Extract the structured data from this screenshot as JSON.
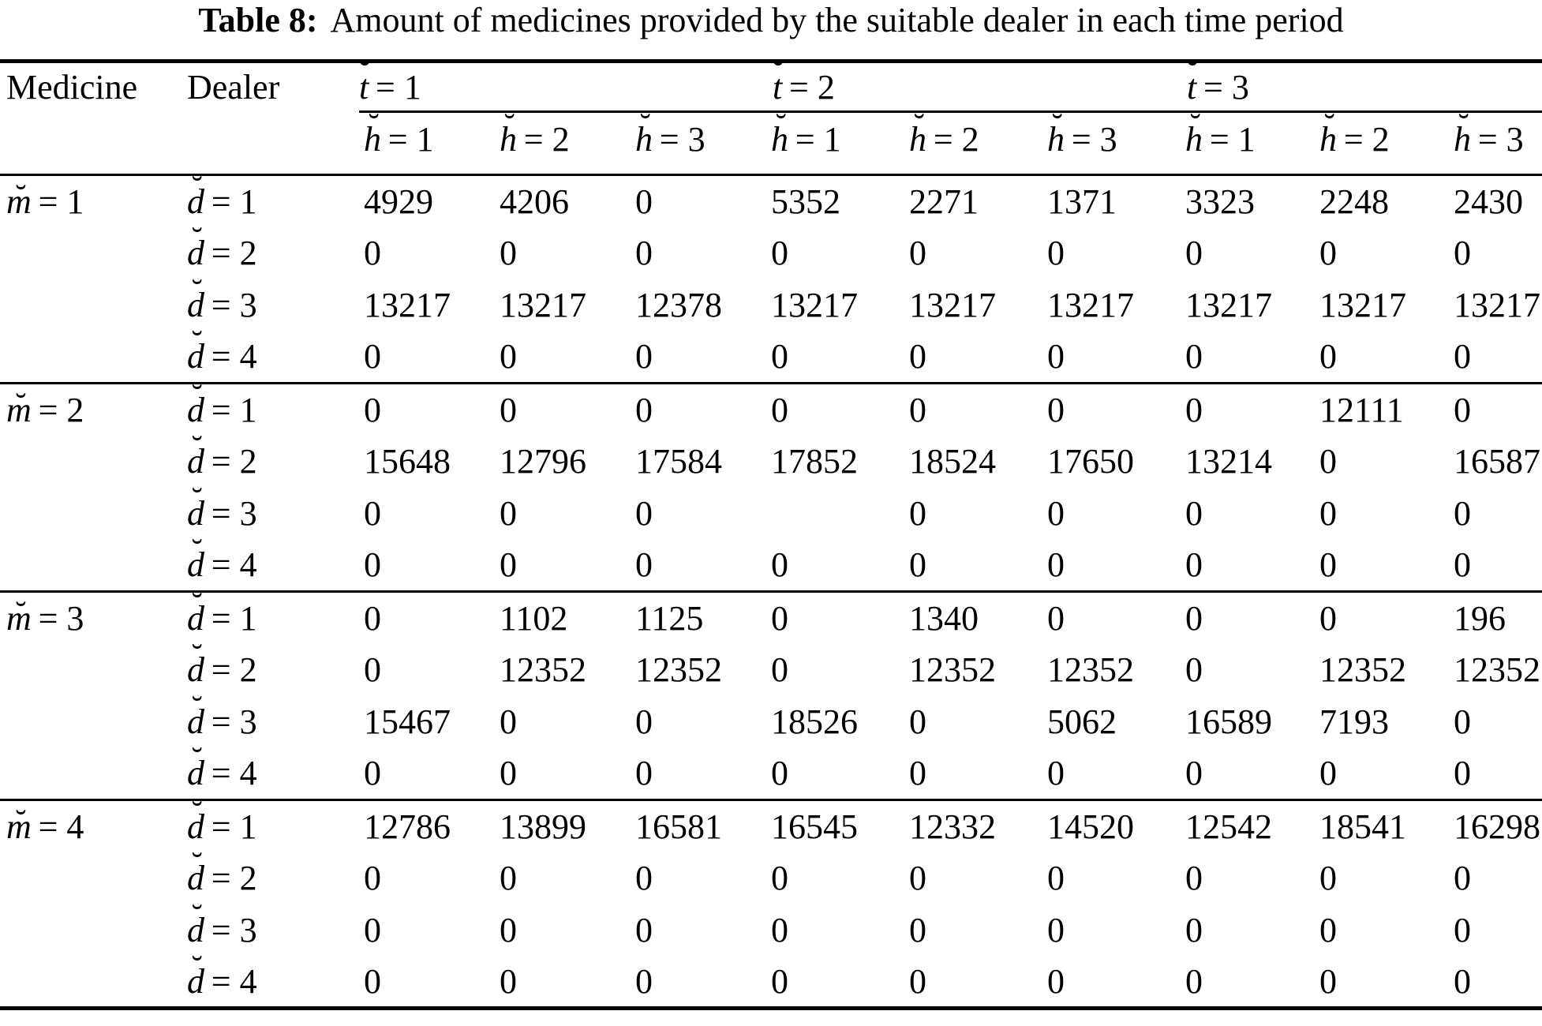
{
  "page": {
    "background": "#ffffff",
    "text_color": "#000000"
  },
  "title": {
    "label": "Table 8:",
    "caption": "Amount of medicines provided by the suitable dealer in each time period"
  },
  "table": {
    "breve": "˘",
    "col_headers": {
      "medicine": "Medicine",
      "dealer": "Dealer"
    },
    "t_groups": [
      {
        "v": "t",
        "rest": "= 1"
      },
      {
        "v": "t",
        "rest": "= 2"
      },
      {
        "v": "t",
        "rest": "= 3"
      }
    ],
    "h_labels": [
      {
        "v": "h",
        "rest": "= 1"
      },
      {
        "v": "h",
        "rest": "= 2"
      },
      {
        "v": "h",
        "rest": "= 3"
      },
      {
        "v": "h",
        "rest": "= 1"
      },
      {
        "v": "h",
        "rest": "= 2"
      },
      {
        "v": "h",
        "rest": "= 3"
      },
      {
        "v": "h",
        "rest": "= 1"
      },
      {
        "v": "h",
        "rest": "= 2"
      },
      {
        "v": "h",
        "rest": "= 3"
      }
    ],
    "blocks": [
      {
        "m": {
          "v": "m",
          "rest": "= 1"
        },
        "rows": [
          {
            "d": {
              "v": "d",
              "rest": "= 1"
            },
            "values": [
              "4929",
              "4206",
              "0",
              "5352",
              "2271",
              "1371",
              "3323",
              "2248",
              "2430"
            ]
          },
          {
            "d": {
              "v": "d",
              "rest": "= 2"
            },
            "values": [
              "0",
              "0",
              "0",
              "0",
              "0",
              "0",
              "0",
              "0",
              "0"
            ]
          },
          {
            "d": {
              "v": "d",
              "rest": "= 3"
            },
            "values": [
              "13217",
              "13217",
              "12378",
              "13217",
              "13217",
              "13217",
              "13217",
              "13217",
              "13217"
            ]
          },
          {
            "d": {
              "v": "d",
              "rest": "= 4"
            },
            "values": [
              "0",
              "0",
              "0",
              "0",
              "0",
              "0",
              "0",
              "0",
              "0"
            ]
          }
        ]
      },
      {
        "m": {
          "v": "m",
          "rest": "= 2"
        },
        "rows": [
          {
            "d": {
              "v": "d",
              "rest": "= 1"
            },
            "values": [
              "0",
              "0",
              "0",
              "0",
              "0",
              "0",
              "0",
              "12111",
              "0"
            ]
          },
          {
            "d": {
              "v": "d",
              "rest": "= 2"
            },
            "values": [
              "15648",
              "12796",
              "17584",
              "17852",
              "18524",
              "17650",
              "13214",
              "0",
              "16587"
            ]
          },
          {
            "d": {
              "v": "d",
              "rest": "= 3"
            },
            "values": [
              "0",
              "0",
              "0",
              "",
              "0",
              "0",
              "0",
              "0",
              "0"
            ]
          },
          {
            "d": {
              "v": "d",
              "rest": "= 4"
            },
            "values": [
              "0",
              "0",
              "0",
              "0",
              "0",
              "0",
              "0",
              "0",
              "0"
            ]
          }
        ]
      },
      {
        "m": {
          "v": "m",
          "rest": "= 3"
        },
        "rows": [
          {
            "d": {
              "v": "d",
              "rest": "= 1"
            },
            "values": [
              "0",
              "1102",
              "1125",
              "0",
              "1340",
              "0",
              "0",
              "0",
              "196"
            ]
          },
          {
            "d": {
              "v": "d",
              "rest": "= 2"
            },
            "values": [
              "0",
              "12352",
              "12352",
              "0",
              "12352",
              "12352",
              "0",
              "12352",
              "12352"
            ]
          },
          {
            "d": {
              "v": "d",
              "rest": "= 3"
            },
            "values": [
              "15467",
              "0",
              "0",
              "18526",
              "0",
              "5062",
              "16589",
              "7193",
              "0"
            ]
          },
          {
            "d": {
              "v": "d",
              "rest": "= 4"
            },
            "values": [
              "0",
              "0",
              "0",
              "0",
              "0",
              "0",
              "0",
              "0",
              "0"
            ]
          }
        ]
      },
      {
        "m": {
          "v": "m",
          "rest": "= 4"
        },
        "rows": [
          {
            "d": {
              "v": "d",
              "rest": "= 1"
            },
            "values": [
              "12786",
              "13899",
              "16581",
              "16545",
              "12332",
              "14520",
              "12542",
              "18541",
              "16298"
            ]
          },
          {
            "d": {
              "v": "d",
              "rest": "= 2"
            },
            "values": [
              "0",
              "0",
              "0",
              "0",
              "0",
              "0",
              "0",
              "0",
              "0"
            ]
          },
          {
            "d": {
              "v": "d",
              "rest": "= 3"
            },
            "values": [
              "0",
              "0",
              "0",
              "0",
              "0",
              "0",
              "0",
              "0",
              "0"
            ]
          },
          {
            "d": {
              "v": "d",
              "rest": "= 4"
            },
            "values": [
              "0",
              "0",
              "0",
              "0",
              "0",
              "0",
              "0",
              "0",
              "0"
            ]
          }
        ]
      }
    ]
  }
}
